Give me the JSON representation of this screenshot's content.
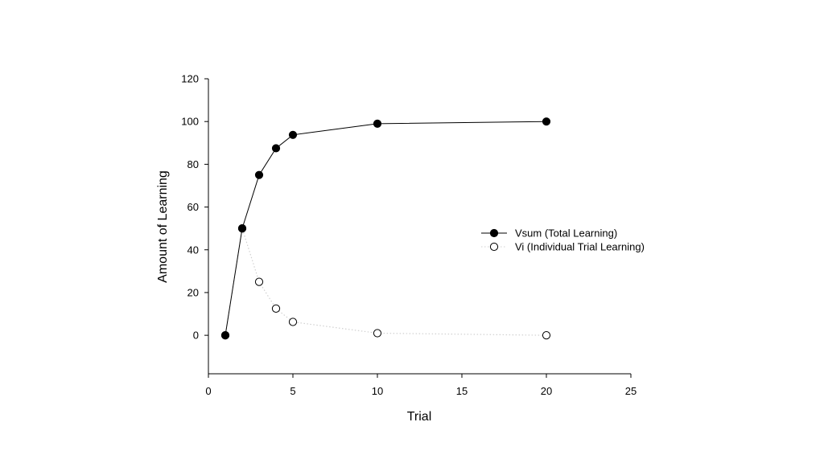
{
  "chart_data": {
    "type": "line",
    "title": "",
    "xlabel": "Trial",
    "ylabel": "Amount of Learning",
    "xlim": [
      0,
      25
    ],
    "ylim": [
      -18,
      120
    ],
    "xticks": [
      0,
      5,
      10,
      15,
      20,
      25
    ],
    "yticks": [
      0,
      20,
      40,
      60,
      80,
      100,
      120
    ],
    "grid": false,
    "legend_position": "right",
    "series": [
      {
        "name": "Vsum (Total Learning)",
        "marker": "filled-circle",
        "line_style": "solid",
        "color": "#000000",
        "x": [
          1,
          2,
          3,
          4,
          5,
          10,
          20
        ],
        "y": [
          0,
          50,
          75,
          87.5,
          93.75,
          99,
          100
        ]
      },
      {
        "name": "Vi (Individual Trial Learning)",
        "marker": "open-circle",
        "line_style": "dotted",
        "color": "#d0d0d0",
        "x": [
          1,
          2,
          3,
          4,
          5,
          10,
          20
        ],
        "y": [
          0,
          50,
          25,
          12.5,
          6.25,
          1,
          0
        ]
      }
    ]
  }
}
